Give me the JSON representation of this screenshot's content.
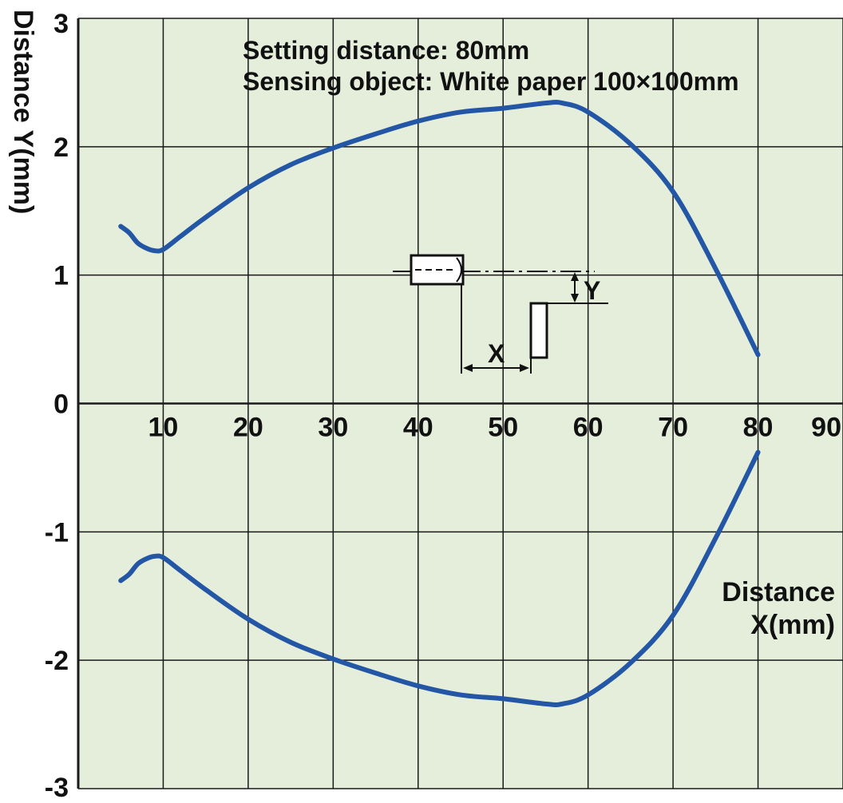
{
  "colors": {
    "plot_background": "#e4eedb",
    "grid": "#1a1a1a",
    "curve": "#2456a6",
    "text": "#111111"
  },
  "annotation": {
    "line1": "Setting distance: 80mm",
    "line2": "Sensing object: White paper 100×100mm"
  },
  "inset": {
    "label_x": "X",
    "label_y": "Y"
  },
  "chart_data": {
    "type": "line",
    "title": "",
    "xlabel": [
      "Distance",
      "X(mm)"
    ],
    "ylabel": "Distance Y(mm)",
    "xlim": [
      0,
      90
    ],
    "ylim": [
      -3,
      3
    ],
    "x_ticks": [
      10,
      20,
      30,
      40,
      50,
      60,
      70,
      80,
      90
    ],
    "y_ticks": [
      3,
      2,
      1,
      0,
      -1,
      -2,
      -3
    ],
    "grid": true,
    "legend": "none",
    "series": [
      {
        "x": [
          5,
          6,
          7,
          8,
          9,
          10,
          12,
          15,
          20,
          25,
          30,
          35,
          40,
          45,
          50,
          55,
          57,
          60,
          65,
          70,
          75,
          80
        ],
        "y": [
          1.38,
          1.33,
          1.25,
          1.21,
          1.19,
          1.2,
          1.3,
          1.45,
          1.68,
          1.86,
          1.99,
          2.1,
          2.2,
          2.27,
          2.3,
          2.34,
          2.34,
          2.27,
          2.02,
          1.65,
          1.05,
          0.38
        ]
      },
      {
        "x": [
          5,
          6,
          7,
          8,
          9,
          10,
          12,
          15,
          20,
          25,
          30,
          35,
          40,
          45,
          50,
          55,
          57,
          60,
          65,
          70,
          75,
          80
        ],
        "y": [
          -1.38,
          -1.33,
          -1.25,
          -1.21,
          -1.19,
          -1.2,
          -1.3,
          -1.45,
          -1.68,
          -1.86,
          -1.99,
          -2.1,
          -2.2,
          -2.27,
          -2.3,
          -2.34,
          -2.34,
          -2.27,
          -2.02,
          -1.65,
          -1.05,
          -0.38
        ]
      }
    ]
  }
}
